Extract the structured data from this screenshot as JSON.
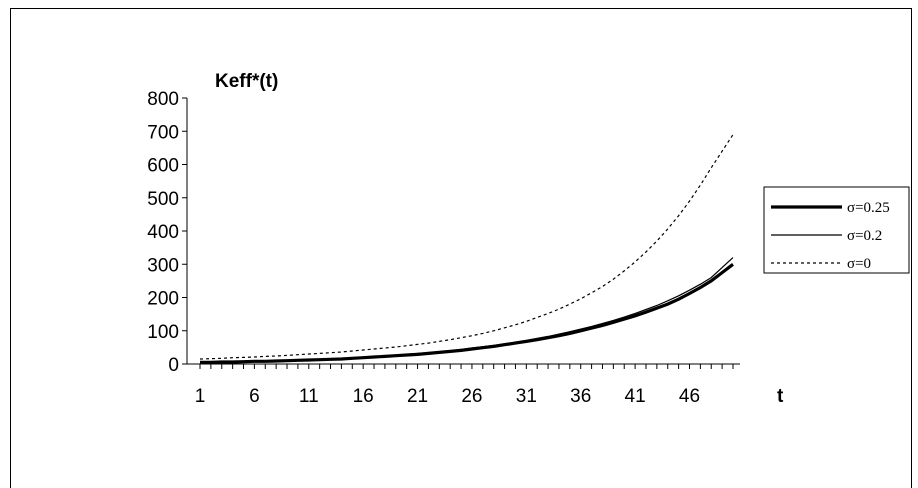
{
  "chart_data": {
    "type": "line",
    "ylabel": "Keff*(t)",
    "xlabel": "t",
    "ylim": [
      0,
      800
    ],
    "yticks": [
      0,
      100,
      200,
      300,
      400,
      500,
      600,
      700,
      800
    ],
    "xlim": [
      1,
      50
    ],
    "xticks": [
      1,
      6,
      11,
      16,
      21,
      26,
      31,
      36,
      41,
      46
    ],
    "grid": false,
    "legend_position": "right",
    "x": [
      1,
      2,
      3,
      4,
      5,
      6,
      7,
      8,
      9,
      10,
      11,
      12,
      13,
      14,
      15,
      16,
      17,
      18,
      19,
      20,
      21,
      22,
      23,
      24,
      25,
      26,
      27,
      28,
      29,
      30,
      31,
      32,
      33,
      34,
      35,
      36,
      37,
      38,
      39,
      40,
      41,
      42,
      43,
      44,
      45,
      46,
      47,
      48,
      49,
      50
    ],
    "series": [
      {
        "name": "σ=0.25",
        "style": "thick",
        "values": [
          5,
          5,
          6,
          6,
          7,
          8,
          8,
          9,
          10,
          11,
          12,
          13,
          14,
          15,
          17,
          19,
          21,
          23,
          25,
          27,
          29,
          32,
          35,
          38,
          41,
          45,
          49,
          53,
          58,
          63,
          68,
          73,
          79,
          85,
          92,
          100,
          108,
          116,
          125,
          135,
          145,
          156,
          168,
          180,
          195,
          212,
          230,
          250,
          275,
          300
        ]
      },
      {
        "name": "σ=0.2",
        "style": "thin",
        "values": [
          6,
          6,
          7,
          7,
          8,
          9,
          9,
          10,
          11,
          12,
          13,
          14,
          15,
          17,
          18,
          20,
          22,
          24,
          27,
          29,
          32,
          34,
          37,
          40,
          44,
          48,
          52,
          56,
          61,
          66,
          71,
          77,
          83,
          90,
          97,
          105,
          113,
          122,
          131,
          141,
          152,
          164,
          176,
          190,
          205,
          222,
          240,
          260,
          290,
          320
        ]
      },
      {
        "name": "σ=0",
        "style": "dotted",
        "values": [
          15,
          16,
          17,
          19,
          20,
          21,
          23,
          24,
          26,
          28,
          30,
          32,
          34,
          36,
          39,
          42,
          45,
          48,
          51,
          55,
          59,
          63,
          68,
          73,
          79,
          85,
          92,
          100,
          109,
          118,
          128,
          140,
          152,
          165,
          180,
          196,
          214,
          233,
          255,
          280,
          307,
          337,
          370,
          406,
          446,
          490,
          538,
          590,
          640,
          690
        ]
      }
    ]
  }
}
